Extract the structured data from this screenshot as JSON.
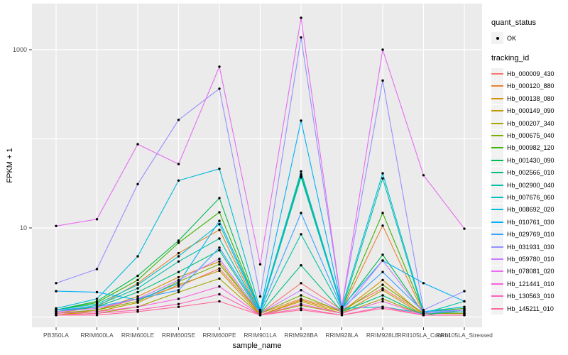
{
  "chart_data": {
    "type": "line",
    "xlabel": "sample_name",
    "ylabel": "FPKM + 1",
    "yscale": "log10",
    "ytick_labels": [
      10,
      1000
    ],
    "gridlines_y": [
      1,
      10,
      100,
      1000
    ],
    "ylim": [
      0.77,
      3300
    ],
    "legend_position": "right",
    "point_color": "#000000",
    "panel_background": "#EBEBEB",
    "gridline_color": "#FFFFFF",
    "tick_text_color": "#4D4D4D",
    "categories": [
      "PB350LA",
      "RRIM600LA",
      "RRIM600LE",
      "RRIM600SE",
      "RRIM600PE",
      "RRIM901LA",
      "RRIM928BA",
      "RRIM928LA",
      "RRIM928LE",
      "RRII105LA_Control",
      "RRII105LA_Stressed"
    ],
    "series": [
      {
        "name": "Hb_000009_430",
        "color": "#F8766D",
        "values": [
          1.1,
          1.2,
          1.6,
          2.2,
          3.5,
          1.1,
          2.4,
          1.2,
          2.1,
          1.1,
          1.1
        ]
      },
      {
        "name": "Hb_000120_880",
        "color": "#EA8331",
        "values": [
          1.1,
          1.3,
          2.4,
          5.2,
          9.5,
          1.1,
          1.6,
          1.2,
          10.6,
          1.1,
          1.1
        ]
      },
      {
        "name": "Hb_000138_080",
        "color": "#D89000",
        "values": [
          1.05,
          1.2,
          1.7,
          2.8,
          4.2,
          1.05,
          1.55,
          1.15,
          2.6,
          1.05,
          1.05
        ]
      },
      {
        "name": "Hb_000149_090",
        "color": "#C09B00",
        "values": [
          1.05,
          1.15,
          1.45,
          2.3,
          3.3,
          1.05,
          1.5,
          1.1,
          2.0,
          1.05,
          1.05
        ]
      },
      {
        "name": "Hb_000207_340",
        "color": "#A3A500",
        "values": [
          1.05,
          1.1,
          1.3,
          1.9,
          2.7,
          1.05,
          1.35,
          1.1,
          1.6,
          1.05,
          1.05
        ]
      },
      {
        "name": "Hb_000675_040",
        "color": "#7CAE00",
        "values": [
          1.1,
          1.2,
          1.5,
          2.5,
          3.9,
          1.1,
          1.75,
          1.15,
          2.3,
          1.1,
          1.1
        ]
      },
      {
        "name": "Hb_000982_120",
        "color": "#39B600",
        "values": [
          1.2,
          1.45,
          2.6,
          6.8,
          15.0,
          1.15,
          38.0,
          1.25,
          14.7,
          1.15,
          1.25
        ]
      },
      {
        "name": "Hb_001430_090",
        "color": "#00BB4E",
        "values": [
          1.2,
          1.5,
          2.9,
          7.2,
          21.6,
          1.15,
          40.0,
          1.25,
          5.0,
          1.1,
          1.2
        ]
      },
      {
        "name": "Hb_002566_010",
        "color": "#00BF7D",
        "values": [
          1.15,
          1.3,
          1.9,
          3.2,
          5.6,
          1.1,
          3.8,
          1.15,
          1.75,
          1.05,
          1.2
        ]
      },
      {
        "name": "Hb_002900_040",
        "color": "#00C1A3",
        "values": [
          1.15,
          1.35,
          2.1,
          4.2,
          7.6,
          1.1,
          8.5,
          1.2,
          36.0,
          1.1,
          1.5
        ]
      },
      {
        "name": "Hb_007676_060",
        "color": "#00BFC4",
        "values": [
          1.2,
          1.4,
          2.3,
          4.8,
          11.0,
          1.15,
          37.0,
          1.25,
          1.3,
          1.1,
          1.15
        ]
      },
      {
        "name": "Hb_008692_020",
        "color": "#00BBDA",
        "values": [
          1.25,
          1.6,
          4.8,
          34.0,
          46.0,
          1.2,
          43.0,
          1.3,
          41.0,
          1.15,
          1.3
        ]
      },
      {
        "name": "Hb_010761_030",
        "color": "#00B0F6",
        "values": [
          1.95,
          1.9,
          1.55,
          2.4,
          12.0,
          1.2,
          160.0,
          1.3,
          4.3,
          2.4,
          1.5
        ]
      },
      {
        "name": "Hb_029769_010",
        "color": "#35A2FF",
        "values": [
          1.2,
          1.3,
          1.6,
          2.0,
          6.0,
          1.15,
          14.7,
          1.25,
          3.2,
          1.15,
          1.2
        ]
      },
      {
        "name": "Hb_031931_030",
        "color": "#9590FF",
        "values": [
          2.4,
          3.45,
          31.0,
          163.0,
          365.0,
          1.7,
          1370.0,
          1.3,
          450.0,
          1.2,
          1.95
        ]
      },
      {
        "name": "Hb_059780_010",
        "color": "#C77CFF",
        "values": [
          1.15,
          1.25,
          1.6,
          2.6,
          4.5,
          1.1,
          2.0,
          1.15,
          4.3,
          1.1,
          1.2
        ]
      },
      {
        "name": "Hb_078081_020",
        "color": "#E76BF3",
        "values": [
          10.5,
          12.5,
          87.0,
          52.0,
          645.0,
          3.9,
          2280.0,
          1.3,
          1000.0,
          39.0,
          9.8
        ]
      },
      {
        "name": "Hb_121441_010",
        "color": "#FA62DB",
        "values": [
          1.1,
          1.15,
          1.3,
          1.6,
          2.2,
          1.05,
          1.4,
          1.1,
          1.5,
          1.05,
          1.05
        ]
      },
      {
        "name": "Hb_130563_010",
        "color": "#FF62BC",
        "values": [
          1.05,
          1.1,
          1.2,
          1.4,
          1.8,
          1.05,
          1.25,
          1.05,
          1.3,
          1.05,
          1.05
        ]
      },
      {
        "name": "Hb_145211_010",
        "color": "#FF6A98",
        "values": [
          1.05,
          1.05,
          1.15,
          1.3,
          1.5,
          1.05,
          1.2,
          1.05,
          1.25,
          1.05,
          1.05
        ]
      }
    ],
    "legend": {
      "quant_status_title": "quant_status",
      "quant_status_items": [
        "OK"
      ],
      "tracking_title": "tracking_id"
    }
  }
}
